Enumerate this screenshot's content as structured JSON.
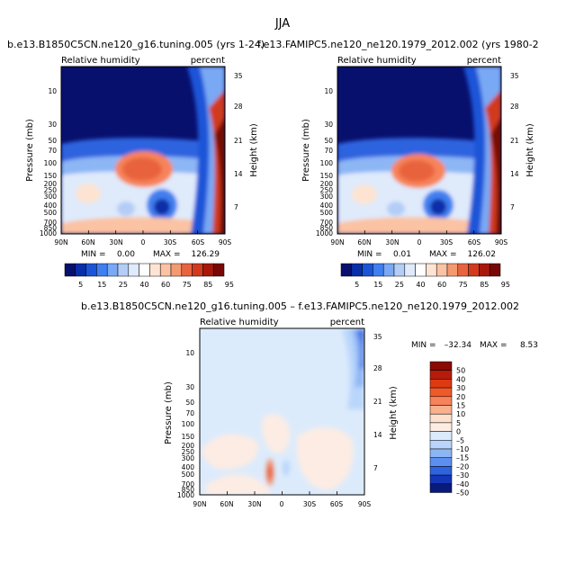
{
  "figure_title": "JJA",
  "chart_data": [
    {
      "type": "heatmap",
      "title": "b.e13.B1850C5CN.ne120_g16.tuning.005 (yrs 1-24)",
      "variable": "Relative humidity",
      "units": "percent",
      "xlabel": "",
      "ylabel": "Pressure (mb)",
      "ylabel_right": "Height (km)",
      "x_ticks": [
        "90N",
        "60N",
        "30N",
        "0",
        "30S",
        "60S",
        "90S"
      ],
      "y_ticks": [
        "10",
        "30",
        "50",
        "70",
        "100",
        "150",
        "200",
        "250",
        "300",
        "400",
        "500",
        "700",
        "850",
        "1000"
      ],
      "height_ticks": [
        "35",
        "28",
        "21",
        "14",
        "7"
      ],
      "ylim": [
        1000,
        3
      ],
      "min_label": "MIN =",
      "min_value": "0.00",
      "max_label": "MAX =",
      "max_value": "126.29",
      "colorbar_labels": [
        "5",
        "15",
        "25",
        "40",
        "60",
        "75",
        "85",
        "95"
      ]
    },
    {
      "type": "heatmap",
      "title": "f.e13.FAMIPC5.ne120_ne120.1979_2012.002 (yrs 1980-2",
      "variable": "Relative humidity",
      "units": "percent",
      "xlabel": "",
      "ylabel": "Pressure (mb)",
      "ylabel_right": "Height (km)",
      "x_ticks": [
        "90N",
        "60N",
        "30N",
        "0",
        "30S",
        "60S",
        "90S"
      ],
      "y_ticks": [
        "10",
        "30",
        "50",
        "70",
        "100",
        "150",
        "200",
        "250",
        "300",
        "400",
        "500",
        "700",
        "850",
        "1000"
      ],
      "height_ticks": [
        "35",
        "28",
        "21",
        "14",
        "7"
      ],
      "ylim": [
        1000,
        3
      ],
      "min_label": "MIN =",
      "min_value": "0.01",
      "max_label": "MAX =",
      "max_value": "126.02",
      "colorbar_labels": [
        "5",
        "15",
        "25",
        "40",
        "60",
        "75",
        "85",
        "95"
      ]
    },
    {
      "type": "heatmap",
      "title": "b.e13.B1850C5CN.ne120_g16.tuning.005 – f.e13.FAMIPC5.ne120_ne120.1979_2012.002",
      "variable": "Relative humidity",
      "units": "percent",
      "xlabel": "",
      "ylabel": "Pressure (mb)",
      "ylabel_right": "Height (km)",
      "x_ticks": [
        "90N",
        "60N",
        "30N",
        "0",
        "30S",
        "60S",
        "90S"
      ],
      "y_ticks": [
        "10",
        "30",
        "50",
        "70",
        "100",
        "150",
        "200",
        "250",
        "300",
        "400",
        "500",
        "700",
        "850",
        "1000"
      ],
      "height_ticks": [
        "35",
        "28",
        "21",
        "14",
        "7"
      ],
      "ylim": [
        1000,
        3
      ],
      "min_label": "MIN =",
      "min_value": "–32.34",
      "max_label": "MAX =",
      "max_value": "8.53",
      "colorbar_labels": [
        "50",
        "40",
        "30",
        "20",
        "15",
        "10",
        "5",
        "0",
        "–5",
        "–10",
        "–15",
        "–20",
        "–30",
        "–40",
        "–50"
      ]
    }
  ],
  "colors": {
    "rh_scale": [
      "#08106e",
      "#0a2ea8",
      "#1a55d8",
      "#3f7ff0",
      "#79a9f4",
      "#b3cdf7",
      "#dfeafb",
      "#ffffff",
      "#fde4d2",
      "#fbc2a3",
      "#f49a70",
      "#e8643e",
      "#d13a1c",
      "#a8180a",
      "#780806"
    ],
    "diff_scale": [
      "#8a0a04",
      "#b81b0a",
      "#de3a12",
      "#f05a28",
      "#f7835a",
      "#fbb08d",
      "#fde0cc",
      "#fdece3",
      "#dcebfc",
      "#b9d5fb",
      "#8db6f5",
      "#5c8ff0",
      "#2d63df",
      "#1337b8",
      "#081a7c"
    ]
  }
}
